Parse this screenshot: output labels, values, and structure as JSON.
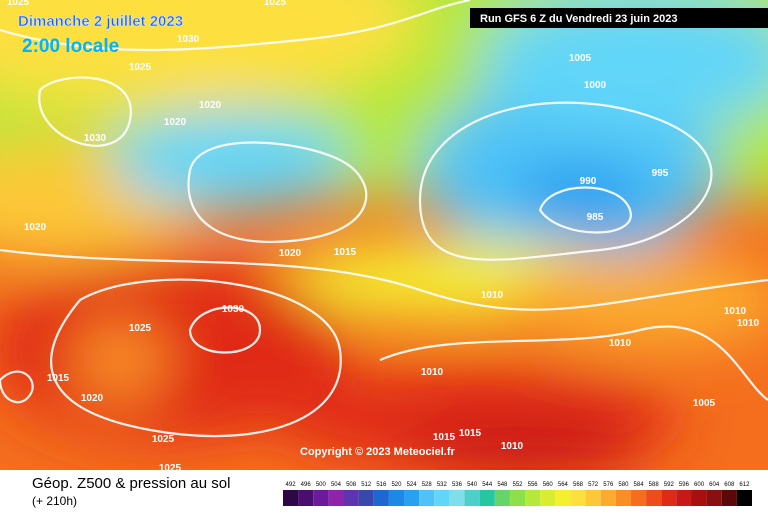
{
  "header": {
    "title": "Dimanche 2 juillet 2023",
    "time": "2:00 locale",
    "run": "Run GFS 6 Z du Vendredi 23 juin 2023"
  },
  "copyright": "Copyright © 2023 Meteociel.fr",
  "footer": {
    "title": "Géop. Z500 & pression au sol",
    "lead": "(+ 210h)"
  },
  "isobar_labels": [
    1025,
    1025,
    1030,
    1025,
    1020,
    1020,
    1030,
    1005,
    1000,
    990,
    995,
    985,
    1020,
    1020,
    1015,
    1010,
    1030,
    1025,
    1010,
    1010,
    1010,
    1010,
    1015,
    1020,
    1005,
    1015,
    1015,
    1010,
    1025,
    1025
  ],
  "colorbar": {
    "ticks": [
      492,
      496,
      500,
      504,
      508,
      512,
      516,
      520,
      524,
      528,
      532,
      536,
      540,
      544,
      548,
      552,
      556,
      560,
      564,
      568,
      572,
      576,
      580,
      584,
      588,
      592,
      596,
      600,
      604,
      608,
      612
    ],
    "colors": [
      "#2d0845",
      "#4a0e6e",
      "#6a1b9a",
      "#8e24aa",
      "#5e35b1",
      "#3949ab",
      "#1e66d0",
      "#1e88e5",
      "#29a0f0",
      "#4fc3f7",
      "#62d6f8",
      "#80deea",
      "#4dd0c8",
      "#26c6a0",
      "#66d46a",
      "#8ee04a",
      "#b4e83a",
      "#d8ec30",
      "#f4f030",
      "#fde040",
      "#fcc838",
      "#fbab2e",
      "#f98d26",
      "#f46e1e",
      "#ee4c1a",
      "#e02a18",
      "#c81818",
      "#a81010",
      "#881010",
      "#5a0808",
      "#000000"
    ]
  }
}
